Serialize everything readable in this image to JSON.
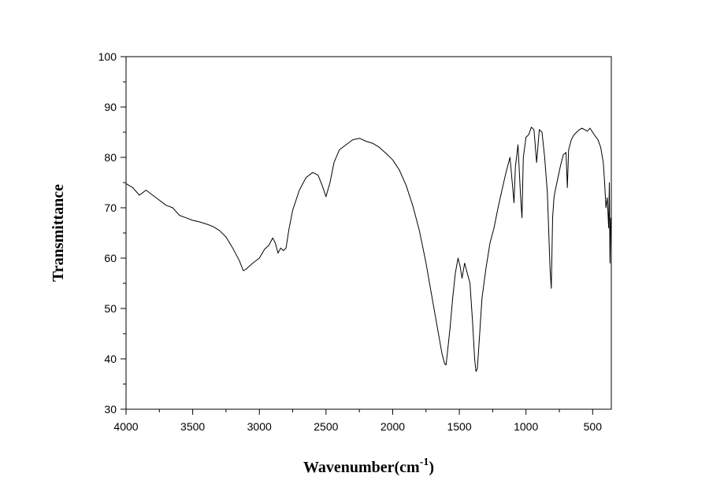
{
  "chart_data": {
    "type": "line",
    "title": "",
    "xlabel": "Wavenumber(cm",
    "xlabel_superscript": "-1",
    "xlabel_suffix": ")",
    "ylabel": "Transmittance",
    "xlim": [
      4000,
      360
    ],
    "ylim": [
      30,
      100
    ],
    "x_reversed": true,
    "grid": false,
    "legend": "none",
    "line_color": "#000000",
    "x_ticks": [
      4000,
      3500,
      3000,
      2500,
      2000,
      1500,
      1000,
      500
    ],
    "y_ticks": [
      30,
      40,
      50,
      60,
      70,
      80,
      90,
      100
    ],
    "series": [
      {
        "x": [
          4000,
          3950,
          3900,
          3850,
          3800,
          3750,
          3700,
          3650,
          3600,
          3550,
          3500,
          3450,
          3400,
          3350,
          3300,
          3250,
          3200,
          3150,
          3120,
          3100,
          3050,
          3000,
          2960,
          2930,
          2900,
          2880,
          2860,
          2840,
          2820,
          2800,
          2780,
          2750,
          2700,
          2650,
          2600,
          2560,
          2530,
          2500,
          2470,
          2440,
          2400,
          2350,
          2300,
          2250,
          2200,
          2150,
          2100,
          2050,
          2000,
          1950,
          1900,
          1850,
          1800,
          1750,
          1700,
          1680,
          1650,
          1630,
          1610,
          1600,
          1590,
          1570,
          1550,
          1530,
          1510,
          1495,
          1480,
          1460,
          1440,
          1420,
          1400,
          1385,
          1375,
          1365,
          1350,
          1330,
          1300,
          1270,
          1240,
          1210,
          1180,
          1150,
          1120,
          1100,
          1090,
          1080,
          1060,
          1040,
          1030,
          1020,
          1000,
          980,
          960,
          940,
          920,
          900,
          880,
          860,
          840,
          820,
          810,
          800,
          790,
          780,
          760,
          740,
          720,
          700,
          690,
          680,
          660,
          640,
          620,
          600,
          580,
          560,
          540,
          520,
          500,
          480,
          460,
          440,
          420,
          410,
          400,
          390,
          380,
          375,
          370,
          365
        ],
        "y": [
          74.8,
          74.0,
          72.5,
          73.5,
          72.5,
          71.5,
          70.5,
          70.0,
          68.5,
          68.0,
          67.5,
          67.2,
          66.8,
          66.3,
          65.5,
          64.2,
          62.0,
          59.5,
          57.5,
          57.8,
          59.0,
          60.0,
          61.8,
          62.5,
          64.0,
          63.0,
          61.0,
          62.0,
          61.5,
          62.0,
          65.5,
          69.5,
          73.5,
          76.0,
          77.0,
          76.5,
          74.5,
          72.2,
          75.0,
          79.0,
          81.5,
          82.5,
          83.5,
          83.8,
          83.2,
          82.8,
          82.0,
          80.8,
          79.5,
          77.5,
          74.5,
          70.5,
          65.5,
          59.0,
          51.5,
          48.5,
          44.0,
          41.0,
          39.0,
          38.8,
          41.0,
          46.0,
          52.0,
          57.0,
          60.0,
          58.5,
          56.0,
          59.0,
          57.0,
          55.0,
          47.0,
          40.0,
          37.5,
          38.0,
          44.0,
          52.0,
          58.0,
          63.0,
          66.0,
          70.0,
          73.5,
          77.0,
          80.0,
          74.0,
          71.0,
          78.0,
          82.5,
          72.0,
          68.0,
          80.0,
          84.0,
          84.5,
          86.0,
          85.5,
          79.0,
          85.5,
          85.0,
          80.0,
          73.0,
          58.0,
          54.0,
          68.0,
          72.0,
          73.5,
          76.0,
          78.5,
          80.5,
          81.0,
          74.0,
          81.5,
          83.5,
          84.5,
          85.0,
          85.5,
          85.8,
          85.5,
          85.2,
          85.8,
          85.0,
          84.2,
          83.5,
          82.0,
          79.0,
          75.0,
          70.0,
          72.0,
          66.0,
          75.0,
          59.0,
          68.0
        ]
      }
    ]
  }
}
